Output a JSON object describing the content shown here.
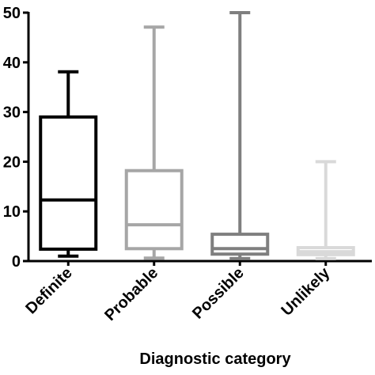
{
  "chart_data": {
    "type": "box",
    "x_label": "Diagnostic category",
    "categories": [
      "Definite",
      "Probable",
      "Possible",
      "Unlikely"
    ],
    "colors": [
      "#000000",
      "#a6a6a6",
      "#7f7f7f",
      "#d9d9d9"
    ],
    "min": [
      1,
      0.6,
      0.5,
      0.5
    ],
    "q1": [
      2.4,
      2.5,
      1.4,
      1.3
    ],
    "median": [
      12.3,
      7.3,
      2.5,
      1.9
    ],
    "q3": [
      29,
      18.2,
      5.4,
      2.7
    ],
    "max": [
      38.1,
      47.1,
      50,
      20
    ],
    "ylim": [
      0,
      50
    ],
    "yticks": [
      0,
      10,
      20,
      30,
      40,
      50
    ]
  }
}
